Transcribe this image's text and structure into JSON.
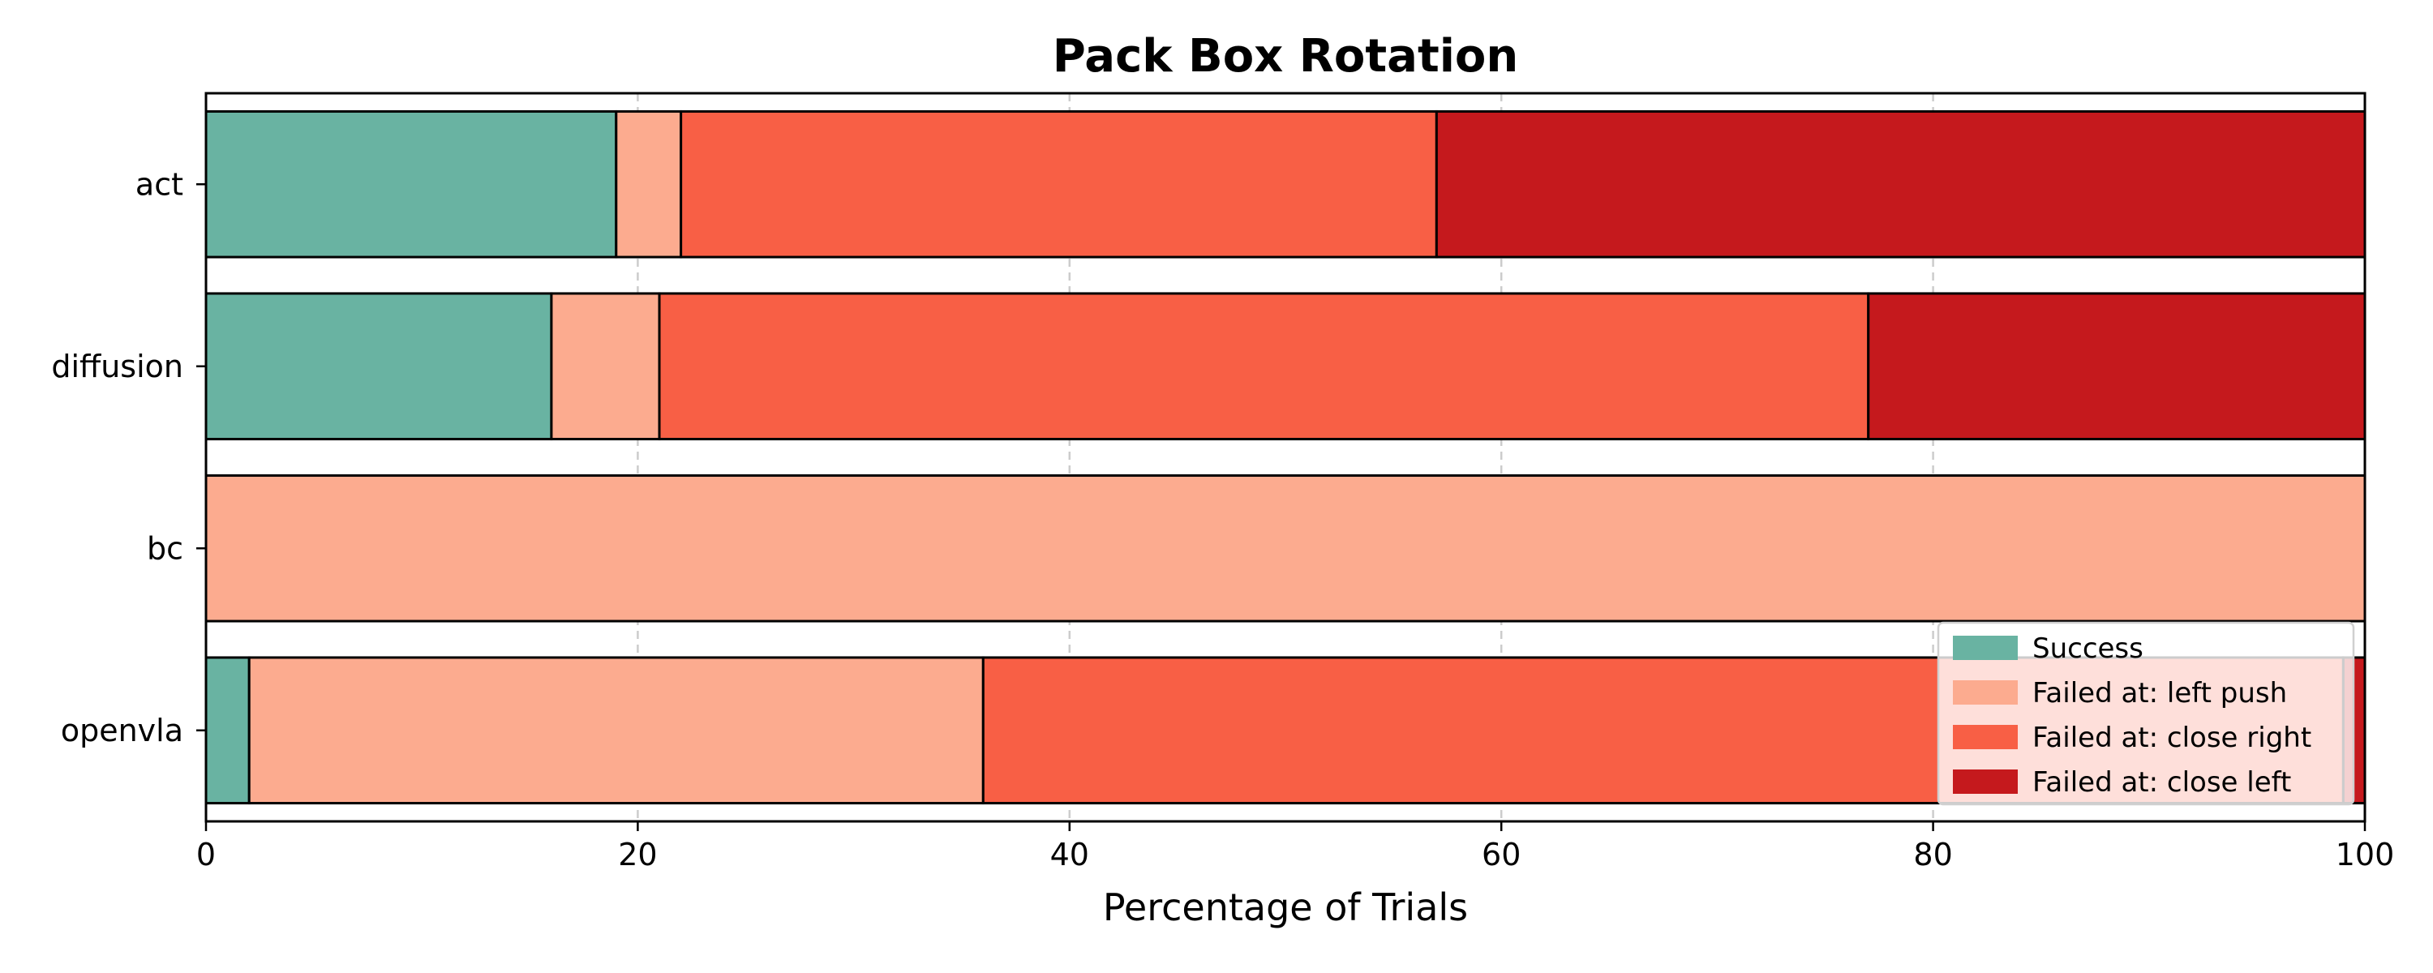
{
  "chart_data": {
    "type": "bar",
    "orientation": "horizontal",
    "stacked": true,
    "title": "Pack Box Rotation",
    "xlabel": "Percentage of Trials",
    "ylabel": "",
    "xlim": [
      0,
      100
    ],
    "xticks": [
      "0",
      "20",
      "40",
      "60",
      "80",
      "100"
    ],
    "grid": "x-dashed",
    "legend_position": "lower-right",
    "categories": [
      "act",
      "diffusion",
      "bc",
      "openvla"
    ],
    "series": [
      {
        "name": "Success",
        "color": "#69b3a2",
        "values": [
          19,
          16,
          0,
          2
        ]
      },
      {
        "name": "Failed at: left push",
        "color": "#fcab8f",
        "values": [
          3,
          5,
          100,
          34
        ]
      },
      {
        "name": "Failed at: close right",
        "color": "#f85f45",
        "values": [
          35,
          56,
          0,
          63
        ]
      },
      {
        "name": "Failed at: close left",
        "color": "#c5191d",
        "values": [
          43,
          23,
          0,
          1
        ]
      }
    ]
  }
}
